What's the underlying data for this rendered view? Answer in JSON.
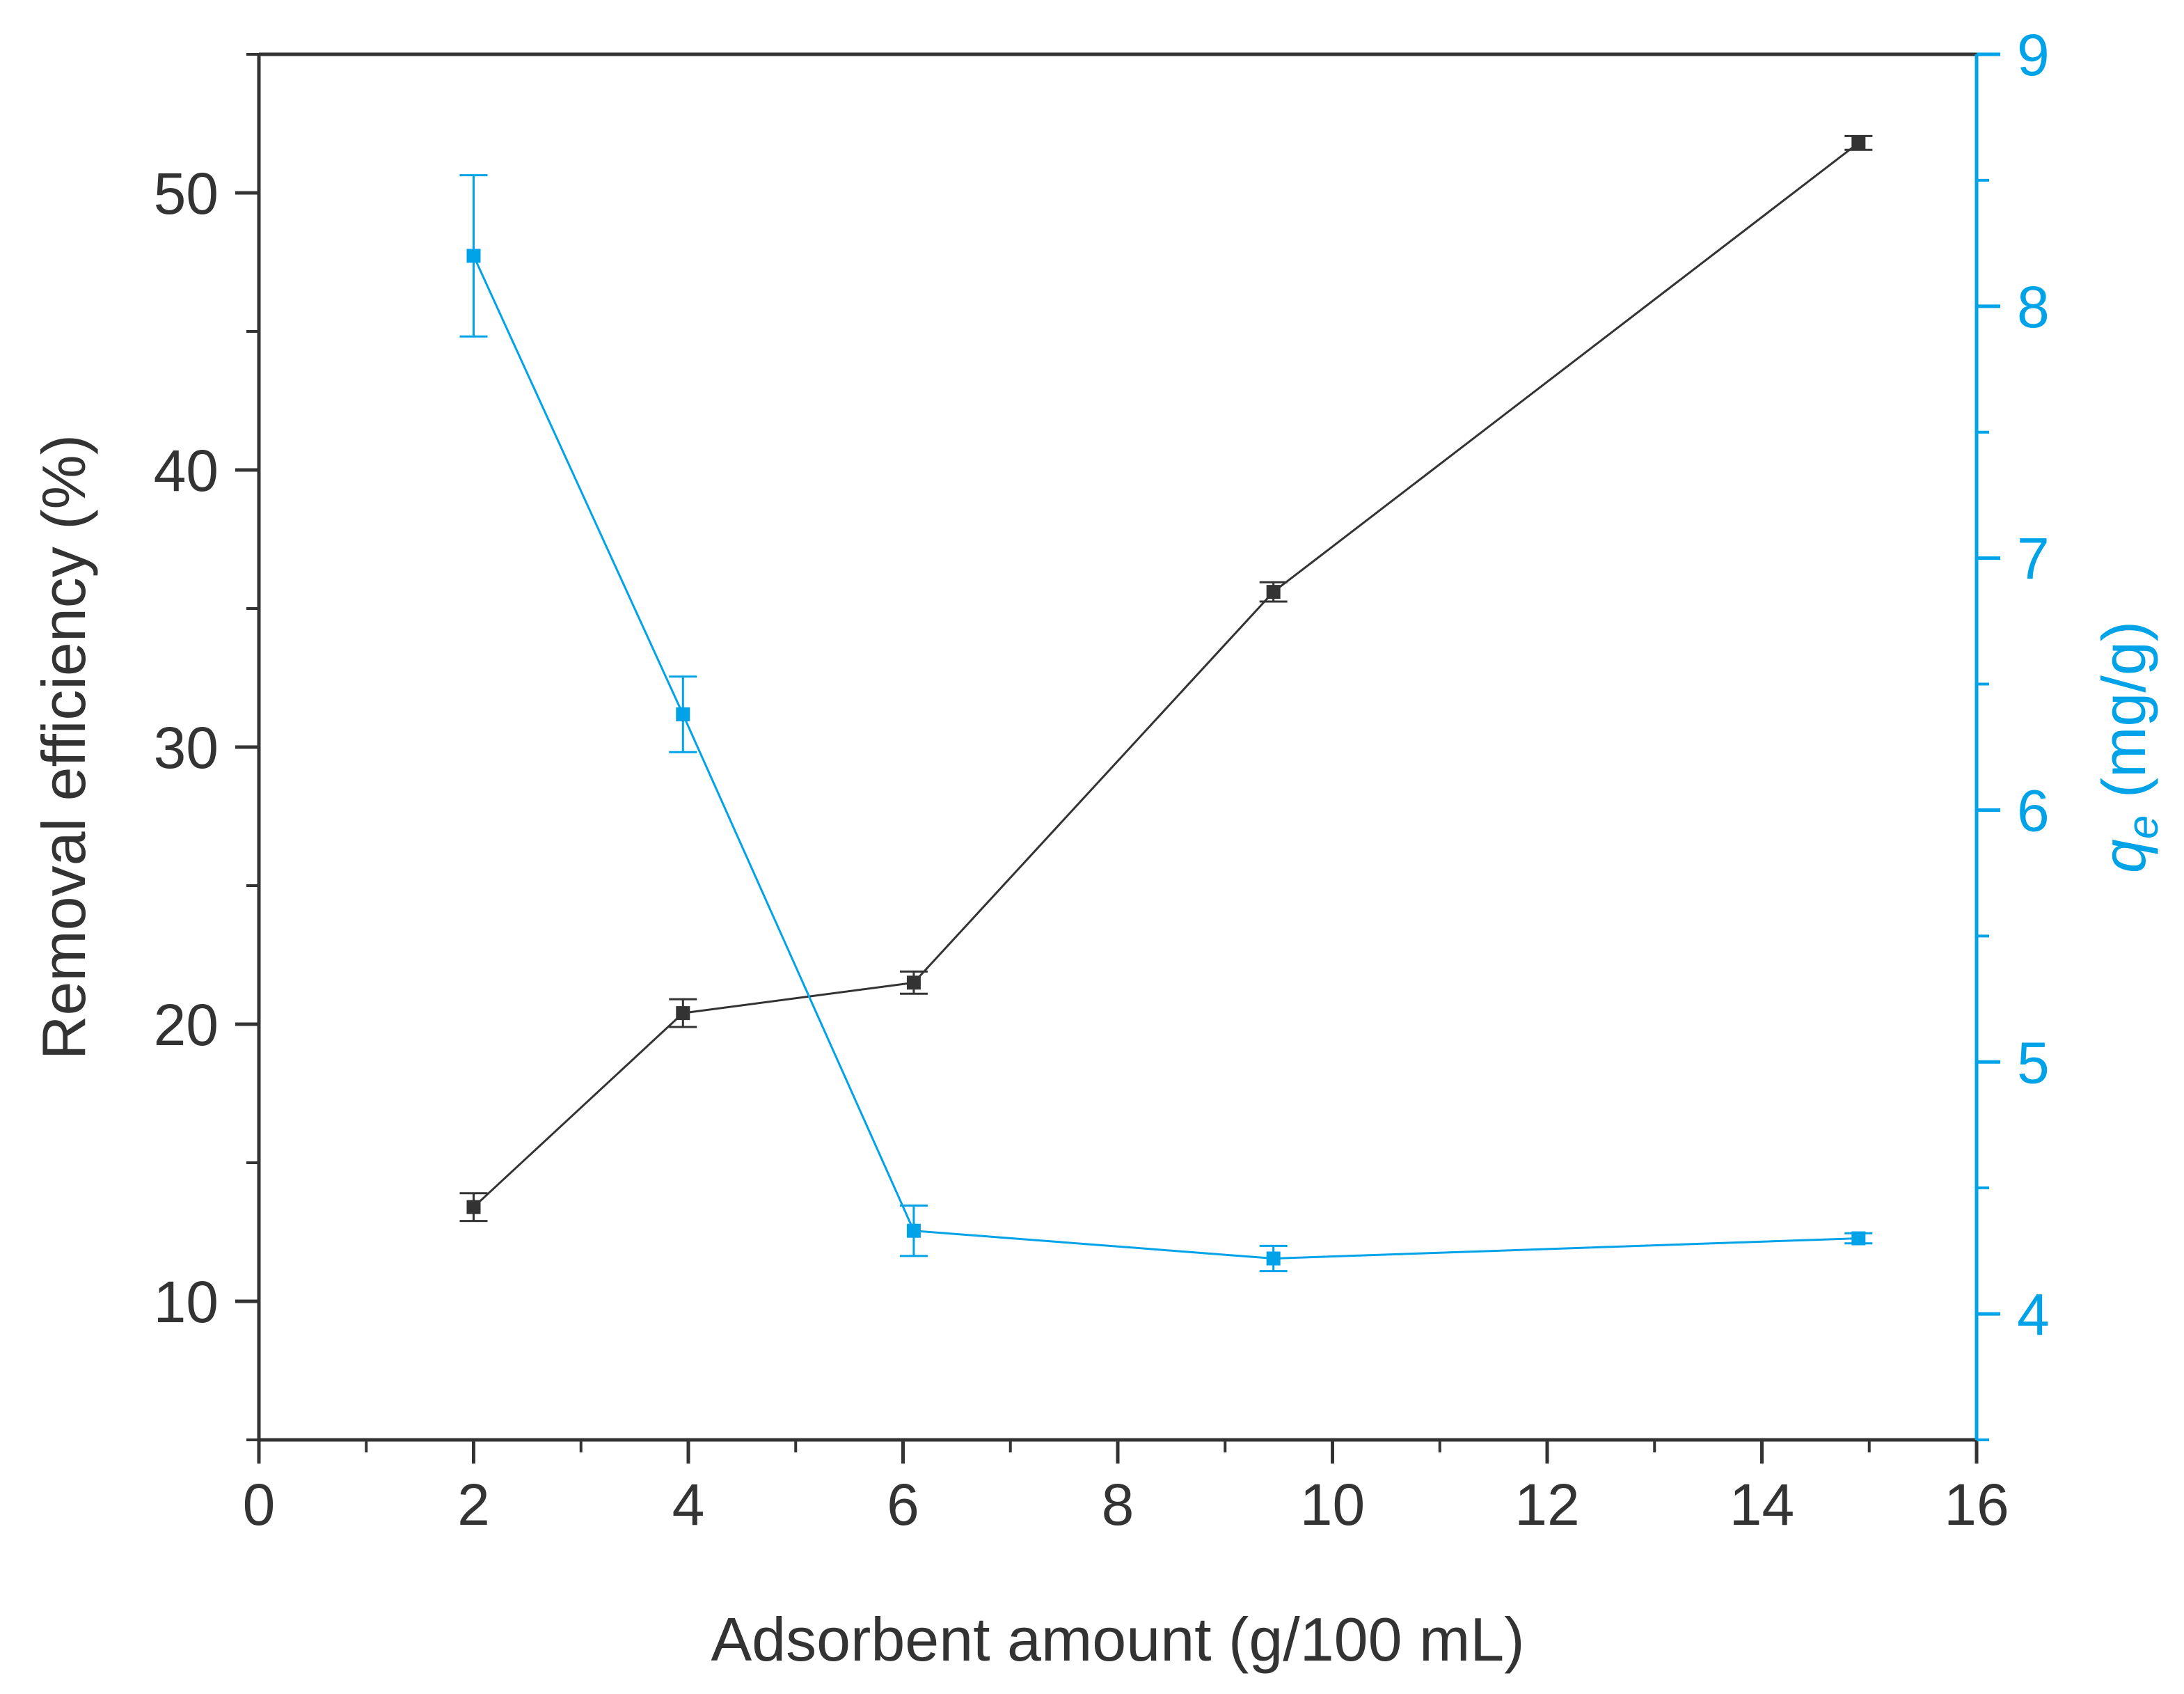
{
  "chart_data": {
    "type": "line",
    "xlabel": "Adsorbent amount (g/100 mL)",
    "ylabel_left": "Removal efficiency (%)",
    "ylabel_right": {
      "italic": "q",
      "sub": "e",
      "rest": " (mg/g)"
    },
    "xlim": [
      0,
      16
    ],
    "ylim_left": [
      5,
      55
    ],
    "ylim_right": [
      3.5,
      9
    ],
    "x_ticks": [
      0,
      2,
      4,
      6,
      8,
      10,
      12,
      14,
      16
    ],
    "y_left_ticks": [
      10,
      20,
      30,
      40,
      50
    ],
    "y_right_ticks": [
      4,
      5,
      6,
      7,
      8,
      9
    ],
    "grid": false,
    "colors": {
      "left_axis": "#333333",
      "right_axis": "#00A2E8"
    },
    "series": [
      {
        "axis": "left",
        "color": "#333333",
        "marker": "square",
        "x": [
          2.0,
          3.95,
          6.1,
          9.45,
          14.9
        ],
        "y": [
          13.4,
          20.4,
          21.5,
          35.6,
          51.8
        ],
        "err": [
          0.5,
          0.5,
          0.4,
          0.35,
          0.25
        ]
      },
      {
        "axis": "right",
        "color": "#00A2E8",
        "marker": "square",
        "x": [
          2.0,
          3.95,
          6.1,
          9.45,
          14.9
        ],
        "y": [
          8.2,
          6.38,
          4.33,
          4.22,
          4.3
        ],
        "err": [
          0.32,
          0.15,
          0.1,
          0.05,
          0.02
        ]
      }
    ]
  }
}
